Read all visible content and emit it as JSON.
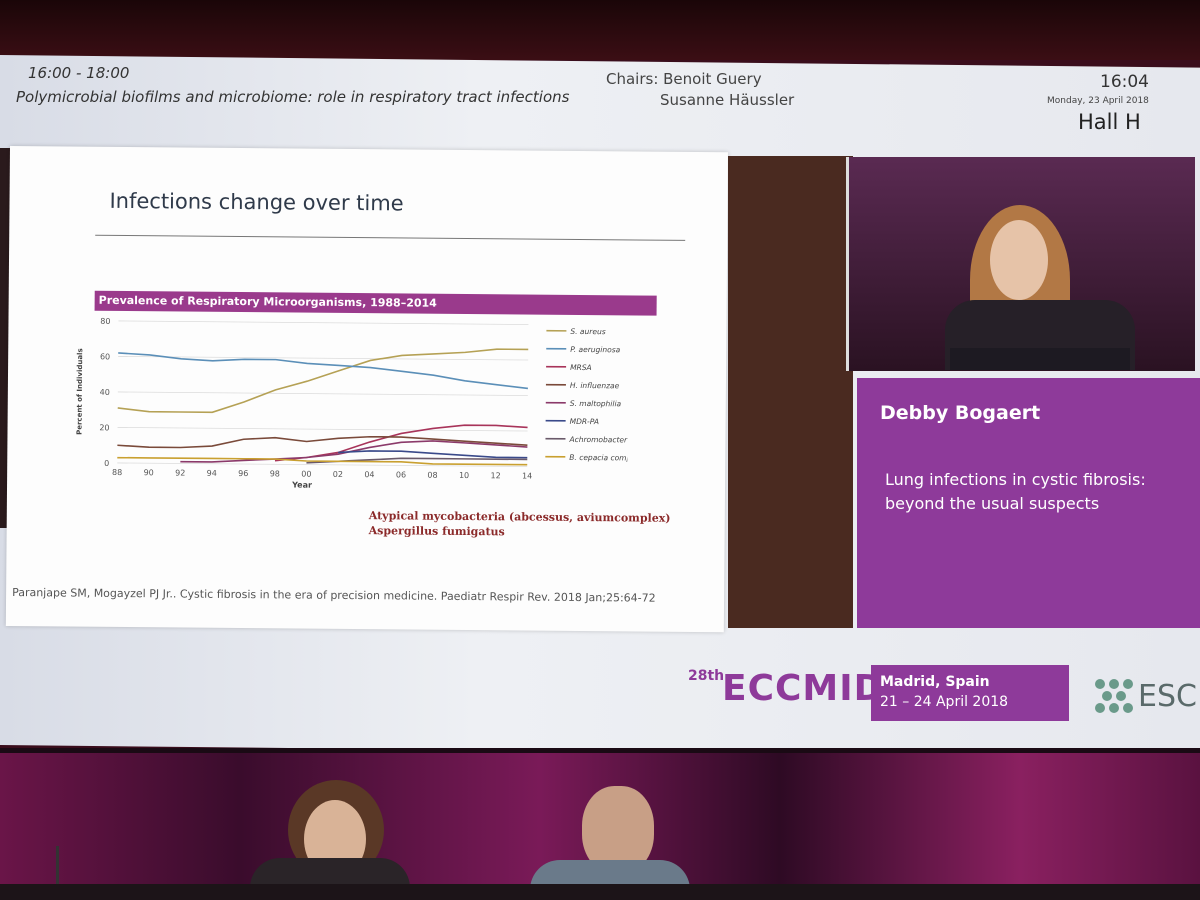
{
  "header": {
    "time_range": "16:00 - 18:00",
    "session_title": "Polymicrobial biofilms and microbiome: role in respiratory tract infections",
    "chairs_label": "Chairs: Benoit Guery",
    "chair2": "Susanne Häussler",
    "clock": "16:04",
    "date": "Monday, 23 April 2018",
    "hall": "Hall H"
  },
  "slide": {
    "title": "Infections change over time",
    "chart_banner": "Prevalence of Respiratory Microorganisms, 1988–2014",
    "annotation_1": "Atypical mycobacteria (abcessus, aviumcomplex)",
    "annotation_2": "Aspergillus fumigatus",
    "citation": "Paranjape SM, Mogayzel PJ Jr.. Cystic fibrosis in the era of precision medicine. Paediatr Respir Rev. 2018 Jan;25:64-72"
  },
  "speaker": {
    "name": "Debby Bogaert",
    "talk_title": "Lung infections in cystic fibrosis: beyond the usual suspects"
  },
  "footer": {
    "edition": "28th",
    "brand": "ECCMID",
    "city": "Madrid, Spain",
    "dates": "21 – 24 April 2018",
    "esc": "ESC"
  },
  "colors": {
    "purple": "#8e3a9a",
    "banner": "#9a3a8c",
    "annotation": "#8b2a2a"
  },
  "chart_data": {
    "type": "line",
    "title": "Prevalence of Respiratory Microorganisms, 1988–2014",
    "xlabel": "Year",
    "ylabel": "Percent of Individuals",
    "x": [
      1988,
      1990,
      1992,
      1994,
      1996,
      1998,
      2000,
      2002,
      2004,
      2006,
      2008,
      2010,
      2012,
      2014
    ],
    "x_tick_labels": [
      "88",
      "90",
      "92",
      "94",
      "96",
      "98",
      "00",
      "02",
      "04",
      "06",
      "08",
      "10",
      "12",
      "14"
    ],
    "y_ticks": [
      0,
      20,
      40,
      60,
      80
    ],
    "ylim": [
      0,
      80
    ],
    "series": [
      {
        "name": "S. aureus",
        "color": "#b5a155",
        "values": [
          31,
          29,
          29,
          29,
          35,
          42,
          47,
          53,
          59,
          62,
          63,
          64,
          66,
          66
        ]
      },
      {
        "name": "P. aeruginosa",
        "color": "#5b8fb8",
        "values": [
          62,
          61,
          59,
          58,
          59,
          59,
          57,
          56,
          55,
          53,
          51,
          48,
          46,
          44
        ]
      },
      {
        "name": "MRSA",
        "color": "#a8345a",
        "values": [
          null,
          null,
          null,
          null,
          null,
          2,
          4,
          7,
          13,
          18,
          21,
          23,
          23,
          22
        ]
      },
      {
        "name": "H. influenzae",
        "color": "#7a4a3a",
        "values": [
          10,
          9,
          9,
          10,
          14,
          15,
          13,
          15,
          16,
          16,
          15,
          14,
          13,
          12
        ]
      },
      {
        "name": "S. maltophilia",
        "color": "#8b3a6a",
        "values": [
          null,
          null,
          1,
          1,
          2,
          3,
          4,
          6,
          10,
          13,
          14,
          13,
          12,
          11
        ]
      },
      {
        "name": "MDR-PA",
        "color": "#3a4a8a",
        "values": [
          null,
          null,
          null,
          null,
          null,
          null,
          null,
          7,
          8,
          8,
          7,
          6,
          5,
          5
        ]
      },
      {
        "name": "Achromobacter",
        "color": "#6a5a6a",
        "values": [
          null,
          null,
          null,
          null,
          null,
          null,
          1,
          2,
          3,
          4,
          4,
          4,
          4,
          4
        ]
      },
      {
        "name": "B. cepacia complex",
        "color": "#c9a030",
        "values": [
          3,
          3,
          3,
          3,
          3,
          3,
          2,
          2,
          2,
          2,
          1,
          1,
          1,
          1
        ]
      }
    ],
    "legend": "right"
  }
}
